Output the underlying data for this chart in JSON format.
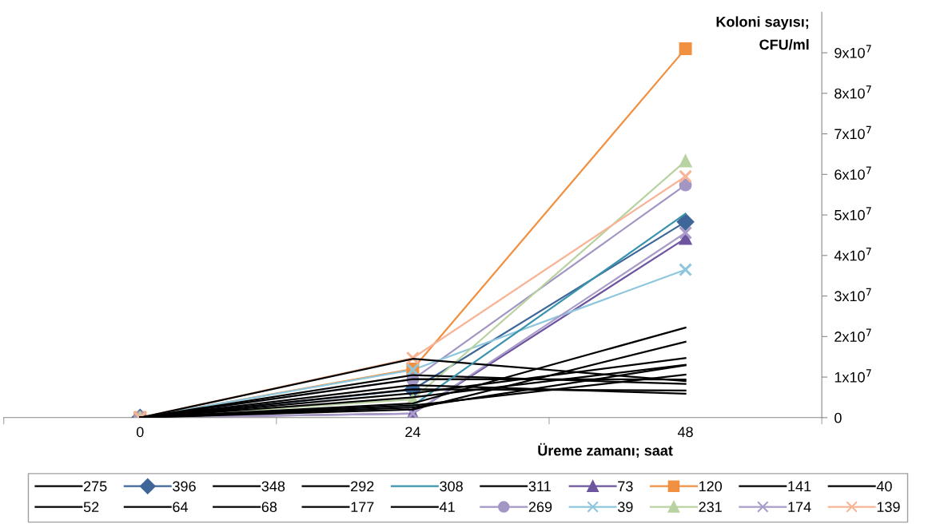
{
  "chart_data": {
    "type": "line",
    "xlabel": "Üreme zamanı; saat",
    "ylabel": "Koloni sayısı;\nCFU/ml",
    "categories": [
      "0",
      "24",
      "48"
    ],
    "ylim": [
      0,
      100000000
    ],
    "yticks": [
      0,
      {
        "value": 10000000,
        "label": "1x10$^{7}$"
      },
      {
        "value": 20000000,
        "label": "2x10$^{7}$"
      },
      {
        "value": 30000000,
        "label": "3x10$^{7}$"
      },
      {
        "value": 40000000,
        "label": "4x10$^{7}$"
      },
      {
        "value": 50000000,
        "label": "5x10$^{7}$"
      },
      {
        "value": 60000000,
        "label": "6x10$^{7}$"
      },
      {
        "value": 70000000,
        "label": "7x10$^{7}$"
      },
      {
        "value": 80000000,
        "label": "8x10$^{7}$"
      },
      {
        "value": 90000000,
        "label": "9x10$^{7}$"
      }
    ],
    "grid": false,
    "legend": "bottom",
    "series": [
      {
        "name": "275",
        "color": "#000000",
        "marker": "none",
        "values": [
          0,
          14500000,
          9000000
        ]
      },
      {
        "name": "396",
        "color": "#3f6699",
        "marker": "diamond",
        "values": [
          0,
          6900000,
          48300000
        ]
      },
      {
        "name": "348",
        "color": "#000000",
        "marker": "none",
        "values": [
          0,
          10500000,
          8300000
        ]
      },
      {
        "name": "292",
        "color": "#000000",
        "marker": "none",
        "values": [
          0,
          9500000,
          9400000
        ]
      },
      {
        "name": "308",
        "color": "#3b93ad",
        "marker": "none",
        "values": [
          0,
          3000000,
          50300000
        ]
      },
      {
        "name": "311",
        "color": "#000000",
        "marker": "none",
        "values": [
          0,
          3500000,
          22200000
        ]
      },
      {
        "name": "73",
        "color": "#6e55a0",
        "marker": "triangle",
        "values": [
          0,
          1000000,
          44200000
        ]
      },
      {
        "name": "120",
        "color": "#f09040",
        "marker": "square",
        "values": [
          0,
          12000000,
          91000000
        ]
      },
      {
        "name": "141",
        "color": "#000000",
        "marker": "none",
        "values": [
          0,
          8000000,
          5900000
        ]
      },
      {
        "name": "40",
        "color": "#000000",
        "marker": "none",
        "values": [
          0,
          2000000,
          18700000
        ]
      },
      {
        "name": "52",
        "color": "#000000",
        "marker": "none",
        "values": [
          0,
          7000000,
          6700000
        ]
      },
      {
        "name": "64",
        "color": "#000000",
        "marker": "none",
        "values": [
          0,
          6000000,
          14700000
        ]
      },
      {
        "name": "68",
        "color": "#000000",
        "marker": "none",
        "values": [
          0,
          5000000,
          13000000
        ]
      },
      {
        "name": "177",
        "color": "#000000",
        "marker": "none",
        "values": [
          0,
          2500000,
          12900000
        ]
      },
      {
        "name": "41",
        "color": "#000000",
        "marker": "none",
        "values": [
          0,
          3000000,
          10600000
        ]
      },
      {
        "name": "269",
        "color": "#a396c4",
        "marker": "circle",
        "values": [
          0,
          9400000,
          57400000
        ]
      },
      {
        "name": "39",
        "color": "#8ec7dd",
        "marker": "cross",
        "values": [
          0,
          11800000,
          36500000
        ]
      },
      {
        "name": "231",
        "color": "#b9d2a1",
        "marker": "triangle",
        "values": [
          0,
          4500000,
          63300000
        ]
      },
      {
        "name": "174",
        "color": "#a99cc9",
        "marker": "cross",
        "values": [
          0,
          1000000,
          45600000
        ]
      },
      {
        "name": "139",
        "color": "#f8b496",
        "marker": "cross",
        "values": [
          0,
          14700000,
          59500000
        ]
      }
    ]
  }
}
